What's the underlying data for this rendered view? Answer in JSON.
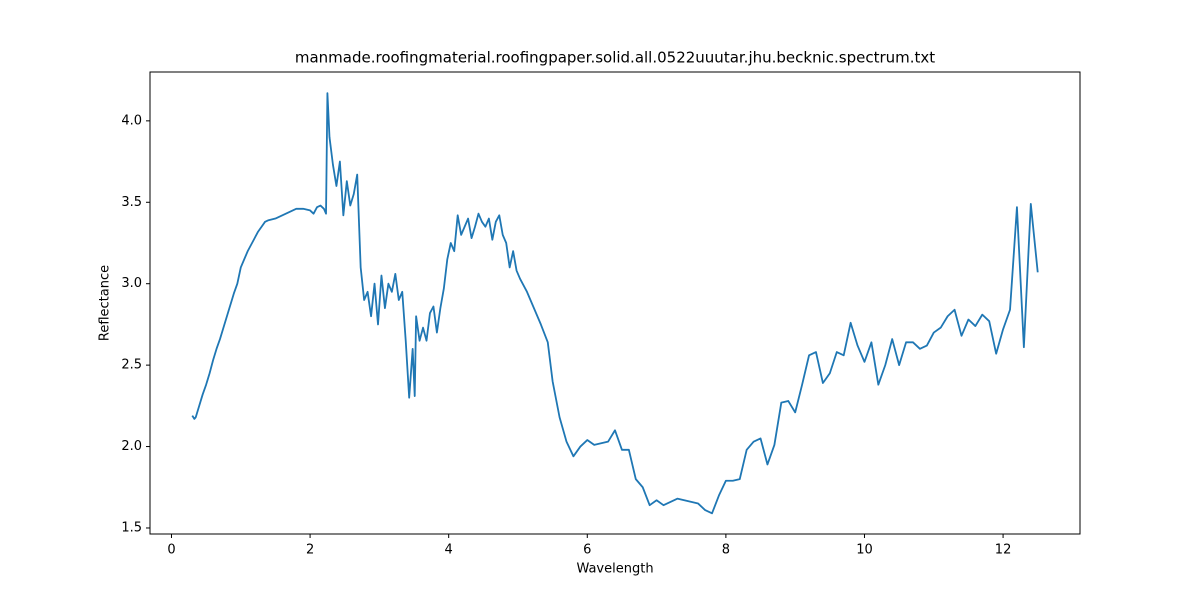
{
  "chart_data": {
    "type": "line",
    "title": "manmade.roofingmaterial.roofingpaper.solid.all.0522uuutar.jhu.becknic.spectrum.txt",
    "x_label": "Wavelength",
    "y_label": "Reflectance",
    "color": "#1f77b4",
    "xlim": [
      -0.31,
      13.11
    ],
    "ylim": [
      1.463,
      4.3
    ],
    "xticks": [
      0,
      2,
      4,
      6,
      8,
      10,
      12
    ],
    "yticks": [
      1.5,
      {
        "value": 2,
        "label": "2.0"
      },
      2.5,
      {
        "value": 3,
        "label": "3.0"
      },
      3.5,
      {
        "value": 4,
        "label": "4.0"
      }
    ],
    "x": [
      0.3,
      0.33,
      0.35,
      0.4,
      0.45,
      0.5,
      0.55,
      0.6,
      0.65,
      0.7,
      0.75,
      0.8,
      0.85,
      0.9,
      0.95,
      1.0,
      1.05,
      1.1,
      1.15,
      1.2,
      1.25,
      1.3,
      1.35,
      1.4,
      1.5,
      1.6,
      1.7,
      1.8,
      1.9,
      2.0,
      2.05,
      2.1,
      2.15,
      2.2,
      2.23,
      2.25,
      2.28,
      2.33,
      2.38,
      2.43,
      2.48,
      2.53,
      2.58,
      2.63,
      2.68,
      2.73,
      2.78,
      2.83,
      2.88,
      2.93,
      2.98,
      3.03,
      3.08,
      3.13,
      3.18,
      3.23,
      3.28,
      3.33,
      3.38,
      3.43,
      3.48,
      3.51,
      3.53,
      3.58,
      3.63,
      3.68,
      3.73,
      3.78,
      3.83,
      3.88,
      3.93,
      3.98,
      4.03,
      4.08,
      4.13,
      4.18,
      4.23,
      4.28,
      4.33,
      4.38,
      4.43,
      4.48,
      4.53,
      4.58,
      4.63,
      4.68,
      4.73,
      4.78,
      4.83,
      4.88,
      4.93,
      4.98,
      5.03,
      5.13,
      5.23,
      5.33,
      5.43,
      5.5,
      5.6,
      5.7,
      5.8,
      5.9,
      6.0,
      6.1,
      6.2,
      6.3,
      6.4,
      6.5,
      6.6,
      6.7,
      6.8,
      6.9,
      7.0,
      7.1,
      7.2,
      7.3,
      7.4,
      7.5,
      7.6,
      7.7,
      7.8,
      7.9,
      8.0,
      8.1,
      8.2,
      8.3,
      8.4,
      8.5,
      8.6,
      8.7,
      8.8,
      8.9,
      9.0,
      9.1,
      9.2,
      9.3,
      9.4,
      9.5,
      9.6,
      9.7,
      9.8,
      9.9,
      10.0,
      10.1,
      10.2,
      10.3,
      10.4,
      10.5,
      10.6,
      10.7,
      10.8,
      10.9,
      11.0,
      11.1,
      11.2,
      11.3,
      11.4,
      11.5,
      11.6,
      11.7,
      11.8,
      11.9,
      12.0,
      12.1,
      12.2,
      12.3,
      12.4,
      12.5
    ],
    "values": [
      2.19,
      2.17,
      2.18,
      2.25,
      2.32,
      2.38,
      2.45,
      2.53,
      2.6,
      2.66,
      2.73,
      2.8,
      2.87,
      2.94,
      3.0,
      3.1,
      3.15,
      3.2,
      3.24,
      3.28,
      3.32,
      3.35,
      3.38,
      3.39,
      3.4,
      3.42,
      3.44,
      3.46,
      3.46,
      3.45,
      3.43,
      3.47,
      3.48,
      3.46,
      3.43,
      4.17,
      3.9,
      3.73,
      3.6,
      3.75,
      3.42,
      3.63,
      3.48,
      3.55,
      3.67,
      3.1,
      2.9,
      2.95,
      2.8,
      3.0,
      2.75,
      3.05,
      2.85,
      3.0,
      2.95,
      3.06,
      2.9,
      2.95,
      2.65,
      2.3,
      2.6,
      2.31,
      2.8,
      2.65,
      2.73,
      2.65,
      2.82,
      2.86,
      2.7,
      2.85,
      2.97,
      3.15,
      3.25,
      3.2,
      3.42,
      3.3,
      3.35,
      3.4,
      3.28,
      3.35,
      3.43,
      3.38,
      3.35,
      3.4,
      3.27,
      3.38,
      3.42,
      3.3,
      3.25,
      3.1,
      3.2,
      3.08,
      3.03,
      2.95,
      2.85,
      2.75,
      2.64,
      2.4,
      2.18,
      2.03,
      1.94,
      2.0,
      2.04,
      2.01,
      2.02,
      2.03,
      2.1,
      1.98,
      1.98,
      1.8,
      1.75,
      1.64,
      1.67,
      1.64,
      1.66,
      1.68,
      1.67,
      1.66,
      1.65,
      1.61,
      1.59,
      1.7,
      1.79,
      1.79,
      1.8,
      1.98,
      2.03,
      2.05,
      1.89,
      2.01,
      2.27,
      2.28,
      2.21,
      2.38,
      2.56,
      2.58,
      2.39,
      2.45,
      2.58,
      2.56,
      2.76,
      2.62,
      2.52,
      2.64,
      2.38,
      2.5,
      2.66,
      2.5,
      2.64,
      2.64,
      2.6,
      2.62,
      2.7,
      2.73,
      2.8,
      2.84,
      2.68,
      2.78,
      2.74,
      2.81,
      2.77,
      2.57,
      2.72,
      2.84,
      3.47,
      2.61,
      3.49,
      3.07
    ]
  }
}
